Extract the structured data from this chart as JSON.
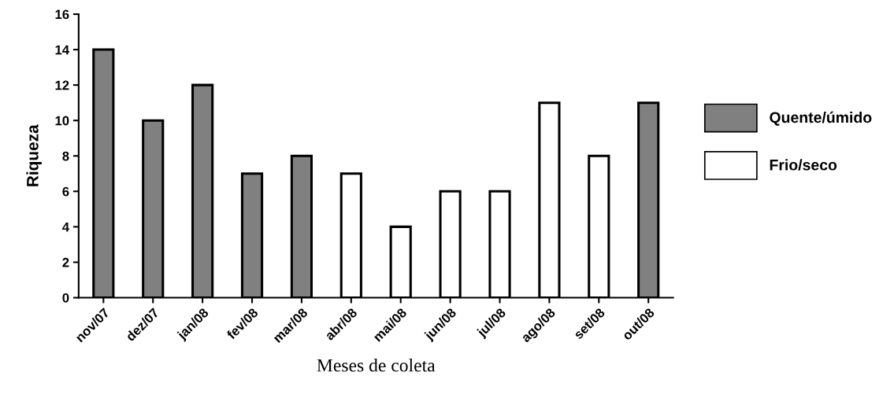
{
  "chart_data": {
    "type": "bar",
    "xlabel": "Meses de coleta",
    "ylabel": "Riqueza",
    "categories": [
      "nov/07",
      "dez/07",
      "jan/08",
      "fev/08",
      "mar/08",
      "abr/08",
      "mai/08",
      "jun/08",
      "jul/08",
      "ago/08",
      "set/08",
      "out/08"
    ],
    "series": [
      {
        "name": "Quente/úmido",
        "color": "#808080",
        "values": [
          14,
          10,
          12,
          7,
          8,
          null,
          null,
          null,
          null,
          null,
          null,
          11
        ]
      },
      {
        "name": "Frio/seco",
        "color": "#ffffff",
        "values": [
          null,
          null,
          null,
          null,
          null,
          7,
          4,
          6,
          6,
          11,
          8,
          null
        ]
      }
    ],
    "ylim": [
      0,
      16
    ],
    "yticks": [
      0,
      2,
      4,
      6,
      8,
      10,
      12,
      14,
      16
    ],
    "grid": false,
    "legend": "right"
  }
}
